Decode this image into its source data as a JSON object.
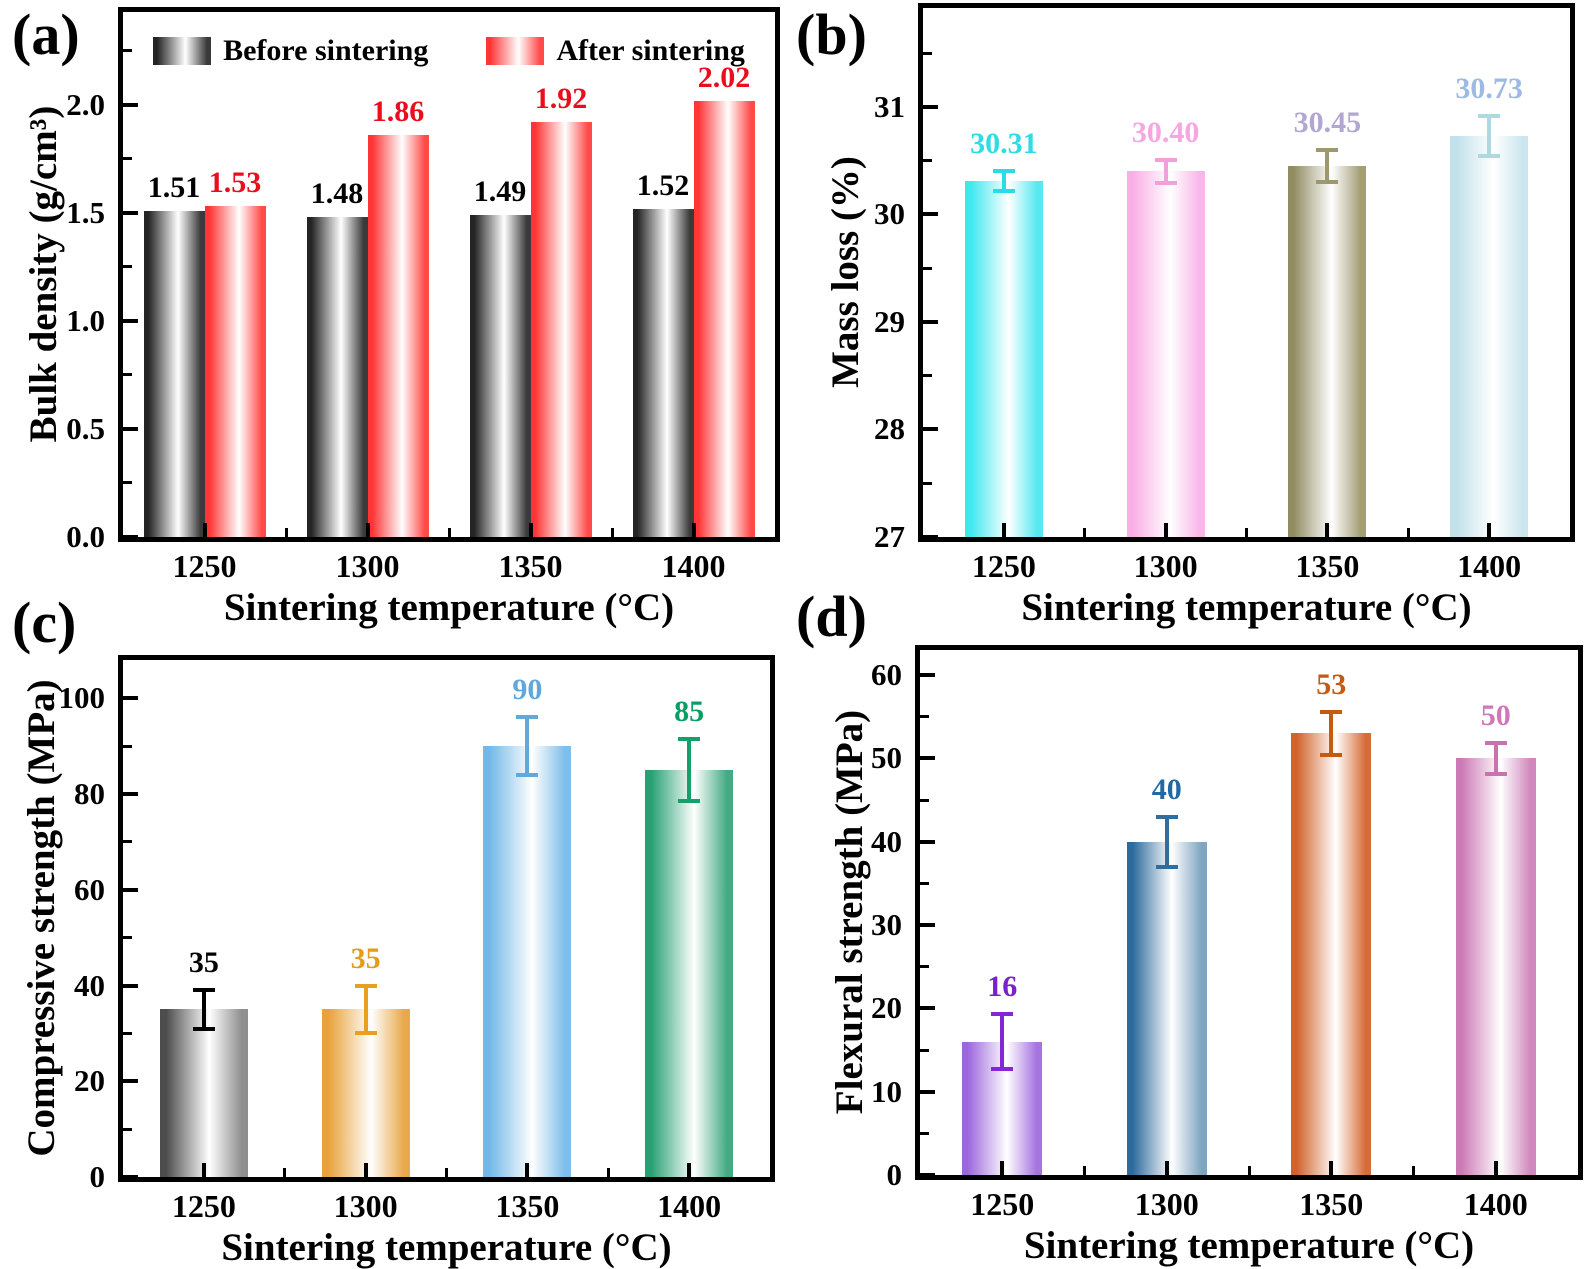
{
  "figure": {
    "background": "#ffffff",
    "x_axis_title": "Sintering temperature (°C)",
    "categories": [
      "1250",
      "1300",
      "1350",
      "1400"
    ]
  },
  "chart_data": [
    {
      "type": "bar",
      "panel_label": "(a)",
      "xlabel": "Sintering temperature (°C)",
      "ylabel": "Bulk density (g/cm³)",
      "categories": [
        "1250",
        "1300",
        "1350",
        "1400"
      ],
      "ylim": [
        0,
        2.43
      ],
      "grid": false,
      "legend_position": "top-inside",
      "yticks": [
        {
          "value": 0.0,
          "label": "0.0"
        },
        {
          "value": 0.5,
          "label": "0.5"
        },
        {
          "value": 1.0,
          "label": "1.0"
        },
        {
          "value": 1.5,
          "label": "1.5"
        },
        {
          "value": 2.0,
          "label": "2.0"
        }
      ],
      "minor_ticks": [
        0.25,
        0.75,
        1.25,
        1.75,
        2.25
      ],
      "series": [
        {
          "name": "Before sintering",
          "bar_color": "#242424",
          "bar_color2": "#3a3a3a",
          "label_color": "#000000",
          "values": [
            1.51,
            1.48,
            1.49,
            1.52
          ],
          "labels": [
            "1.51",
            "1.48",
            "1.49",
            "1.52"
          ]
        },
        {
          "name": "After sintering",
          "bar_color": "#ff3434",
          "bar_color2": "#ff4a4a",
          "label_color": "#e90d1e",
          "values": [
            1.53,
            1.86,
            1.92,
            2.02
          ],
          "labels": [
            "1.53",
            "1.86",
            "1.92",
            "2.02"
          ]
        }
      ]
    },
    {
      "type": "bar",
      "panel_label": "(b)",
      "xlabel": "Sintering temperature (°C)",
      "ylabel": "Mass loss (%)",
      "categories": [
        "1250",
        "1300",
        "1350",
        "1400"
      ],
      "ylim": [
        27,
        31.92
      ],
      "grid": false,
      "yticks": [
        {
          "value": 27,
          "label": "27"
        },
        {
          "value": 28,
          "label": "28"
        },
        {
          "value": 29,
          "label": "29"
        },
        {
          "value": 30,
          "label": "30"
        },
        {
          "value": 31,
          "label": "31"
        }
      ],
      "minor_ticks": [
        27.5,
        28.5,
        29.5,
        30.5,
        31.5
      ],
      "bars": [
        {
          "category": "1250",
          "value": 30.31,
          "error": 0.09,
          "label": "30.31",
          "bar_color": "#3de8ef",
          "bar_color2": "#55e9f0",
          "error_color": "#29dce5",
          "label_color": "#2edce4"
        },
        {
          "category": "1300",
          "value": 30.4,
          "error": 0.11,
          "label": "30.40",
          "bar_color": "#f9aee6",
          "bar_color2": "#f9b6e8",
          "error_color": "#f2a0da",
          "label_color": "#f6a6e0"
        },
        {
          "category": "1350",
          "value": 30.45,
          "error": 0.15,
          "label": "30.45",
          "bar_color": "#928c62",
          "bar_color2": "#a49e76",
          "error_color": "#9e9870",
          "label_color": "#b2a6d2"
        },
        {
          "category": "1400",
          "value": 30.73,
          "error": 0.19,
          "label": "30.73",
          "bar_color": "#c0e0ea",
          "bar_color2": "#cbe6ee",
          "error_color": "#aed9e0",
          "label_color": "#9db9e4"
        }
      ]
    },
    {
      "type": "bar",
      "panel_label": "(c)",
      "xlabel": "Sintering temperature (°C)",
      "ylabel": "Compressive strength (MPa)",
      "categories": [
        "1250",
        "1300",
        "1350",
        "1400"
      ],
      "ylim": [
        0,
        108
      ],
      "grid": false,
      "yticks": [
        {
          "value": 0,
          "label": "0"
        },
        {
          "value": 20,
          "label": "20"
        },
        {
          "value": 40,
          "label": "40"
        },
        {
          "value": 60,
          "label": "60"
        },
        {
          "value": 80,
          "label": "80"
        },
        {
          "value": 100,
          "label": "100"
        }
      ],
      "minor_ticks": [
        10,
        30,
        50,
        70,
        90
      ],
      "bars": [
        {
          "category": "1250",
          "value": 35,
          "error": 4,
          "label": "35",
          "bar_color": "#4d4d4d",
          "bar_color2": "#8f8f8f",
          "error_color": "#000000",
          "label_color": "#000000"
        },
        {
          "category": "1300",
          "value": 35,
          "error": 5,
          "label": "35",
          "bar_color": "#e8a23a",
          "bar_color2": "#e8a94c",
          "error_color": "#e8a021",
          "label_color": "#e69b1a"
        },
        {
          "category": "1350",
          "value": 90,
          "error": 6,
          "label": "90",
          "bar_color": "#72b8e9",
          "bar_color2": "#7fbeea",
          "error_color": "#60a9dd",
          "label_color": "#5fa8dd"
        },
        {
          "category": "1400",
          "value": 85,
          "error": 6.5,
          "label": "85",
          "bar_color": "#27a074",
          "bar_color2": "#44aa84",
          "error_color": "#14a06b",
          "label_color": "#0d9c64"
        }
      ]
    },
    {
      "type": "bar",
      "panel_label": "(d)",
      "xlabel": "Sintering temperature (°C)",
      "ylabel": "Flexural strength (MPa)",
      "categories": [
        "1250",
        "1300",
        "1350",
        "1400"
      ],
      "ylim": [
        0,
        63
      ],
      "grid": false,
      "yticks": [
        {
          "value": 0,
          "label": "0"
        },
        {
          "value": 10,
          "label": "10"
        },
        {
          "value": 20,
          "label": "20"
        },
        {
          "value": 30,
          "label": "30"
        },
        {
          "value": 40,
          "label": "40"
        },
        {
          "value": 50,
          "label": "50"
        },
        {
          "value": 60,
          "label": "60"
        }
      ],
      "minor_ticks": [
        5,
        15,
        25,
        35,
        45,
        55
      ],
      "bars": [
        {
          "category": "1250",
          "value": 16,
          "error": 3.3,
          "label": "16",
          "bar_color": "#9c66dc",
          "bar_color2": "#a674e0",
          "error_color": "#8326d8",
          "label_color": "#7c20cf"
        },
        {
          "category": "1300",
          "value": 40,
          "error": 3.0,
          "label": "40",
          "bar_color": "#2c6b9d",
          "bar_color2": "#7fa5c0",
          "error_color": "#2f6e9e",
          "label_color": "#1f6aa5"
        },
        {
          "category": "1350",
          "value": 53,
          "error": 2.6,
          "label": "53",
          "bar_color": "#d2622b",
          "bar_color2": "#d66d38",
          "error_color": "#c55a11",
          "label_color": "#c55a11"
        },
        {
          "category": "1400",
          "value": 50,
          "error": 1.9,
          "label": "50",
          "bar_color": "#cc7ab5",
          "bar_color2": "#d189bd",
          "error_color": "#c873ae",
          "label_color": "#cf77b8"
        }
      ]
    }
  ]
}
